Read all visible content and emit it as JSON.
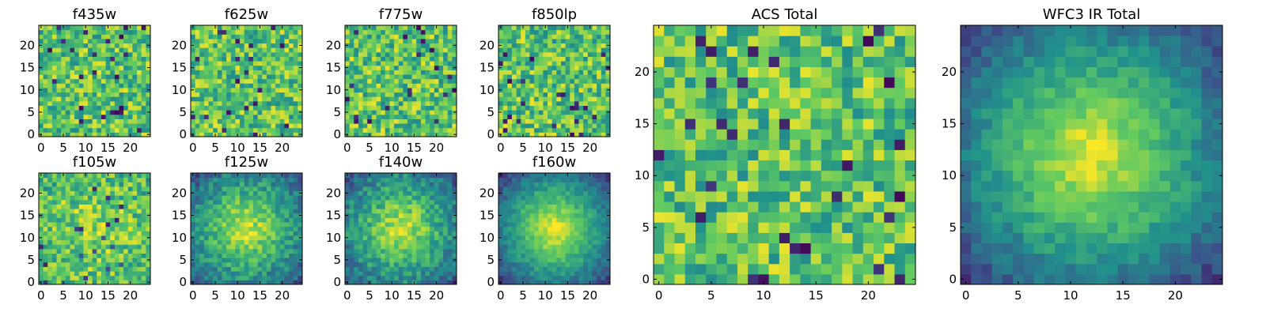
{
  "chart_data": [
    {
      "type": "heatmap",
      "title": "f435w",
      "xticks": [
        "0",
        "5",
        "10",
        "15",
        "20"
      ],
      "yticks": [
        "0",
        "5",
        "10",
        "15",
        "20"
      ],
      "xlim": [
        0,
        24
      ],
      "ylim": [
        0,
        24
      ],
      "grid": false
    },
    {
      "type": "heatmap",
      "title": "f625w",
      "xticks": [
        "0",
        "5",
        "10",
        "15",
        "20"
      ],
      "yticks": [
        "0",
        "5",
        "10",
        "15",
        "20"
      ],
      "xlim": [
        0,
        24
      ],
      "ylim": [
        0,
        24
      ],
      "grid": false
    },
    {
      "type": "heatmap",
      "title": "f775w",
      "xticks": [
        "0",
        "5",
        "10",
        "15",
        "20"
      ],
      "yticks": [
        "0",
        "5",
        "10",
        "15",
        "20"
      ],
      "xlim": [
        0,
        24
      ],
      "ylim": [
        0,
        24
      ],
      "grid": false
    },
    {
      "type": "heatmap",
      "title": "f850lp",
      "xticks": [
        "0",
        "5",
        "10",
        "15",
        "20"
      ],
      "yticks": [
        "0",
        "5",
        "10",
        "15",
        "20"
      ],
      "xlim": [
        0,
        24
      ],
      "ylim": [
        0,
        24
      ],
      "grid": false
    },
    {
      "type": "heatmap",
      "title": "f105w",
      "xticks": [
        "0",
        "5",
        "10",
        "15",
        "20"
      ],
      "yticks": [
        "0",
        "5",
        "10",
        "15",
        "20"
      ],
      "xlim": [
        0,
        24
      ],
      "ylim": [
        0,
        24
      ],
      "grid": false
    },
    {
      "type": "heatmap",
      "title": "f125w",
      "xticks": [
        "0",
        "5",
        "10",
        "15",
        "20"
      ],
      "yticks": [
        "0",
        "5",
        "10",
        "15",
        "20"
      ],
      "xlim": [
        0,
        24
      ],
      "ylim": [
        0,
        24
      ],
      "grid": false
    },
    {
      "type": "heatmap",
      "title": "f140w",
      "xticks": [
        "0",
        "5",
        "10",
        "15",
        "20"
      ],
      "yticks": [
        "0",
        "5",
        "10",
        "15",
        "20"
      ],
      "xlim": [
        0,
        24
      ],
      "ylim": [
        0,
        24
      ],
      "grid": false
    },
    {
      "type": "heatmap",
      "title": "f160w",
      "xticks": [
        "0",
        "5",
        "10",
        "15",
        "20"
      ],
      "yticks": [
        "0",
        "5",
        "10",
        "15",
        "20"
      ],
      "xlim": [
        0,
        24
      ],
      "ylim": [
        0,
        24
      ],
      "grid": false
    },
    {
      "type": "heatmap",
      "title": "ACS Total",
      "xticks": [
        "0",
        "5",
        "10",
        "15",
        "20"
      ],
      "yticks": [
        "0",
        "5",
        "10",
        "15",
        "20"
      ],
      "xlim": [
        0,
        24
      ],
      "ylim": [
        0,
        24
      ],
      "grid": false
    },
    {
      "type": "heatmap",
      "title": "WFC3 IR Total",
      "xticks": [
        "0",
        "5",
        "10",
        "15",
        "20"
      ],
      "yticks": [
        "0",
        "5",
        "10",
        "15",
        "20"
      ],
      "xlim": [
        0,
        24
      ],
      "ylim": [
        0,
        24
      ],
      "grid": false
    }
  ],
  "colormap": [
    "#440154",
    "#3b528b",
    "#21918c",
    "#5ec962",
    "#fde725"
  ]
}
